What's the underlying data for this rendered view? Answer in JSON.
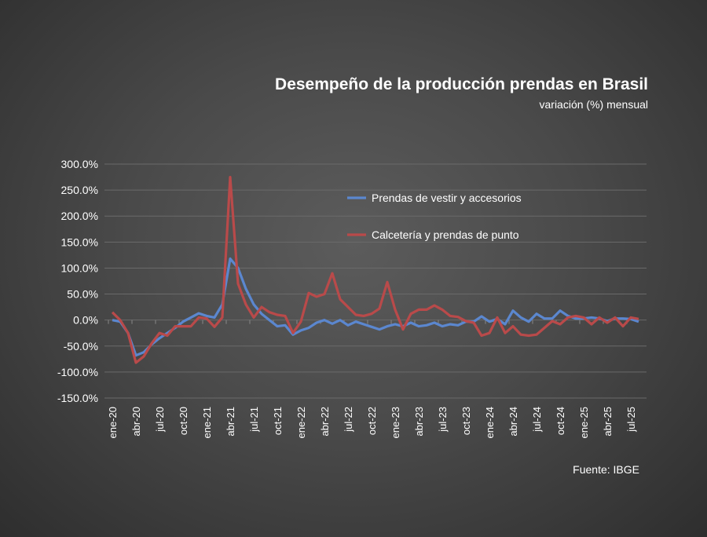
{
  "chart_data": {
    "type": "line",
    "title": "Desempeño de la producción prendas en Brasil",
    "subtitle": "variación (%) mensual",
    "source": "Fuente: IBGE",
    "xlabel": "",
    "ylabel": "",
    "ylim": [
      -150,
      300
    ],
    "yticks": [
      300,
      250,
      200,
      150,
      100,
      50,
      0,
      -50,
      -100,
      -150
    ],
    "ytick_labels": [
      "300.0%",
      "250.0%",
      "200.0%",
      "150.0%",
      "100.0%",
      "50.0%",
      "0.0%",
      "-50.0%",
      "-100.0%",
      "-150.0%"
    ],
    "xtick_labels": [
      "ene-20",
      "abr-20",
      "jul-20",
      "oct-20",
      "ene-21",
      "abr-21",
      "jul-21",
      "oct-21",
      "ene-22",
      "abr-22",
      "jul-22",
      "oct-22",
      "ene-23",
      "abr-23",
      "jul-23",
      "oct-23",
      "ene-24",
      "abr-24",
      "jul-24",
      "oct-24",
      "ene-25",
      "abr-25",
      "jul-25"
    ],
    "x_start": "ene-20",
    "x_end": "ago-25",
    "grid": true,
    "legend": "top-center",
    "series": [
      {
        "name": "Prendas de vestir y accesorios",
        "color": "#5b87cf",
        "values": [
          0,
          -3,
          -25,
          -68,
          -62,
          -47,
          -35,
          -25,
          -15,
          -3,
          5,
          13,
          8,
          5,
          30,
          118,
          100,
          60,
          30,
          12,
          0,
          -12,
          -10,
          -28,
          -20,
          -15,
          -5,
          0,
          -7,
          0,
          -10,
          -3,
          -8,
          -13,
          -18,
          -12,
          -8,
          -12,
          -5,
          -12,
          -10,
          -5,
          -12,
          -8,
          -10,
          -3,
          -3,
          7,
          -3,
          2,
          -8,
          18,
          5,
          -3,
          12,
          3,
          3,
          18,
          8,
          3,
          3,
          5,
          3,
          -2,
          3,
          3,
          2,
          -3
        ]
      },
      {
        "name": "Calcetería y prendas de punto",
        "color": "#b94a4a",
        "values": [
          15,
          0,
          -25,
          -82,
          -70,
          -45,
          -25,
          -30,
          -12,
          -12,
          -12,
          5,
          3,
          -13,
          5,
          275,
          70,
          30,
          5,
          25,
          15,
          10,
          8,
          -25,
          -3,
          52,
          45,
          50,
          90,
          40,
          25,
          10,
          8,
          12,
          22,
          73,
          20,
          -18,
          12,
          20,
          20,
          28,
          20,
          8,
          6,
          -2,
          -5,
          -30,
          -25,
          5,
          -25,
          -12,
          -28,
          -30,
          -28,
          -15,
          -2,
          -8,
          5,
          8,
          5,
          -8,
          5,
          -5,
          5,
          -12,
          5,
          2
        ]
      }
    ]
  }
}
